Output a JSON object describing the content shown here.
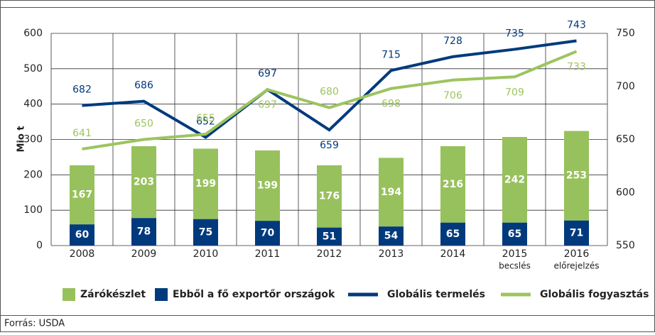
{
  "chart_data": {
    "type": "bar_line",
    "y_label": "Mio t",
    "categories": [
      "2008",
      "2009",
      "2010",
      "2011",
      "2012",
      "2013",
      "2014",
      "2015",
      "2016"
    ],
    "category_notes": [
      null,
      null,
      null,
      null,
      null,
      null,
      null,
      "becslés",
      "előrejelzés"
    ],
    "ylim": [
      0,
      600
    ],
    "yticks": [
      0,
      100,
      200,
      300,
      400,
      500,
      600
    ],
    "y2lim": [
      550,
      750
    ],
    "y2ticks": [
      550,
      600,
      650,
      700,
      750
    ],
    "grid": true,
    "series": [
      {
        "name": "Zárókészlet",
        "type": "bar",
        "color": "#97c15c",
        "values": [
          167,
          203,
          199,
          199,
          176,
          194,
          216,
          242,
          253
        ]
      },
      {
        "name": "Ebből a fő exportőr országok",
        "type": "bar",
        "color": "#003a7d",
        "values": [
          60,
          78,
          75,
          70,
          51,
          54,
          65,
          65,
          71
        ]
      },
      {
        "name": "Globális termelés",
        "type": "line",
        "axis": "y2",
        "color": "#003a7d",
        "values": [
          682,
          686,
          652,
          697,
          659,
          715,
          728,
          735,
          743
        ]
      },
      {
        "name": "Globális fogyasztás",
        "type": "line",
        "axis": "y2",
        "color": "#9dc45f",
        "values": [
          641,
          650,
          655,
          697,
          680,
          698,
          706,
          709,
          733
        ]
      }
    ]
  },
  "source": "Forrás: USDA"
}
